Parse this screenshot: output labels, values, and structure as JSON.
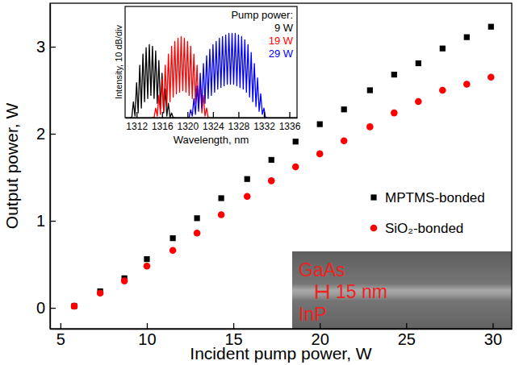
{
  "chart_data": [
    {
      "type": "scatter",
      "xlabel": "Incident pump power, W",
      "ylabel": "Output power, W",
      "x": [
        5.8,
        7.3,
        8.7,
        10,
        11.5,
        12.9,
        14.3,
        15.8,
        17.2,
        18.6,
        20,
        21.4,
        22.9,
        24.3,
        25.7,
        27.1,
        28.5,
        29.9
      ],
      "xlim": [
        4.4,
        31.1
      ],
      "xticks": [
        5,
        10,
        15,
        20,
        25,
        30
      ],
      "ylim": [
        -0.24,
        3.5
      ],
      "yticks": [
        0,
        1,
        2,
        3
      ],
      "legend": "right",
      "series": [
        {
          "name": "MPTMS-bonded",
          "color": "#000000",
          "marker": "square",
          "values": [
            0.02,
            0.19,
            0.34,
            0.56,
            0.8,
            1.03,
            1.26,
            1.48,
            1.7,
            1.91,
            2.11,
            2.28,
            2.5,
            2.68,
            2.81,
            2.98,
            3.11,
            3.23
          ]
        },
        {
          "name": "SiO₂-bonded",
          "color": "#ff0000",
          "marker": "circle",
          "values": [
            0.02,
            0.17,
            0.31,
            0.48,
            0.66,
            0.86,
            1.07,
            1.28,
            1.46,
            1.62,
            1.77,
            1.92,
            2.08,
            2.24,
            2.37,
            2.5,
            2.57,
            2.65
          ]
        }
      ],
      "annotations": [
        "GaAs",
        "15 nm",
        "InP"
      ]
    },
    {
      "type": "line",
      "xlabel": "Wavelength, nm",
      "ylabel": "Intensity, 10 dB/div",
      "legend_title": "Pump power:",
      "legend": "upper right",
      "xlim": [
        1310.2,
        1337.2
      ],
      "xticks": [
        1312,
        1316,
        1320,
        1324,
        1328,
        1332,
        1336
      ],
      "ylim": [
        0,
        70
      ],
      "tick_labels": "x",
      "series": [
        {
          "name": "9 W",
          "color": "#000000",
          "x": [
            1311,
            1311.25,
            1311.5,
            1311.75,
            1312,
            1312.25,
            1312.5,
            1312.75,
            1313,
            1313.25,
            1313.5,
            1313.75,
            1314,
            1314.25,
            1314.5,
            1314.75,
            1315,
            1315.25,
            1315.5,
            1315.75,
            1316,
            1316.25,
            1316.5,
            1316.75,
            1317,
            1317.25,
            1317.5,
            1317.75,
            1318
          ],
          "values": [
            0,
            0,
            10,
            1,
            22,
            3,
            33,
            6,
            40,
            10,
            44,
            12,
            46,
            14,
            45,
            12,
            42,
            9,
            36,
            6,
            28,
            3,
            18,
            1,
            9,
            0,
            3,
            0,
            0
          ]
        },
        {
          "name": "19 W",
          "color": "#ff0000",
          "x": [
            1314.5,
            1314.75,
            1315,
            1315.25,
            1315.5,
            1315.75,
            1316,
            1316.25,
            1316.5,
            1316.75,
            1317,
            1317.25,
            1317.5,
            1317.75,
            1318,
            1318.25,
            1318.5,
            1318.75,
            1319,
            1319.25,
            1319.5,
            1319.75,
            1320,
            1320.25,
            1320.5,
            1320.75,
            1321,
            1321.25,
            1321.5,
            1321.75,
            1322,
            1322.25,
            1322.5,
            1322.75,
            1323,
            1323.25,
            1323.5
          ],
          "values": [
            0,
            0,
            6,
            1,
            14,
            2,
            24,
            4,
            33,
            7,
            40,
            10,
            45,
            13,
            48,
            15,
            50,
            16,
            51,
            17,
            50,
            16,
            48,
            14,
            45,
            12,
            40,
            9,
            33,
            6,
            24,
            3,
            14,
            1,
            6,
            0,
            0
          ]
        },
        {
          "name": "29 W",
          "color": "#0000ff",
          "x": [
            1320,
            1320.25,
            1320.5,
            1320.75,
            1321,
            1321.25,
            1321.5,
            1321.75,
            1322,
            1322.25,
            1322.5,
            1322.75,
            1323,
            1323.25,
            1323.5,
            1323.75,
            1324,
            1324.25,
            1324.5,
            1324.75,
            1325,
            1325.25,
            1325.5,
            1325.75,
            1326,
            1326.25,
            1326.5,
            1326.75,
            1327,
            1327.25,
            1327.5,
            1327.75,
            1328,
            1328.25,
            1328.5,
            1328.75,
            1329,
            1329.25,
            1329.5,
            1329.75,
            1330,
            1330.25,
            1330.5,
            1330.75,
            1331,
            1331.25,
            1331.5,
            1331.75,
            1332,
            1332.25,
            1332.5
          ],
          "values": [
            0,
            0,
            5,
            1,
            12,
            2,
            20,
            4,
            28,
            6,
            34,
            9,
            39,
            12,
            43,
            14,
            46,
            16,
            48,
            18,
            50,
            19,
            51,
            20,
            52,
            21,
            53,
            21,
            53,
            21,
            53,
            20,
            52,
            19,
            51,
            18,
            49,
            16,
            46,
            13,
            41,
            10,
            34,
            7,
            25,
            4,
            15,
            2,
            6,
            0,
            0
          ]
        }
      ]
    }
  ]
}
